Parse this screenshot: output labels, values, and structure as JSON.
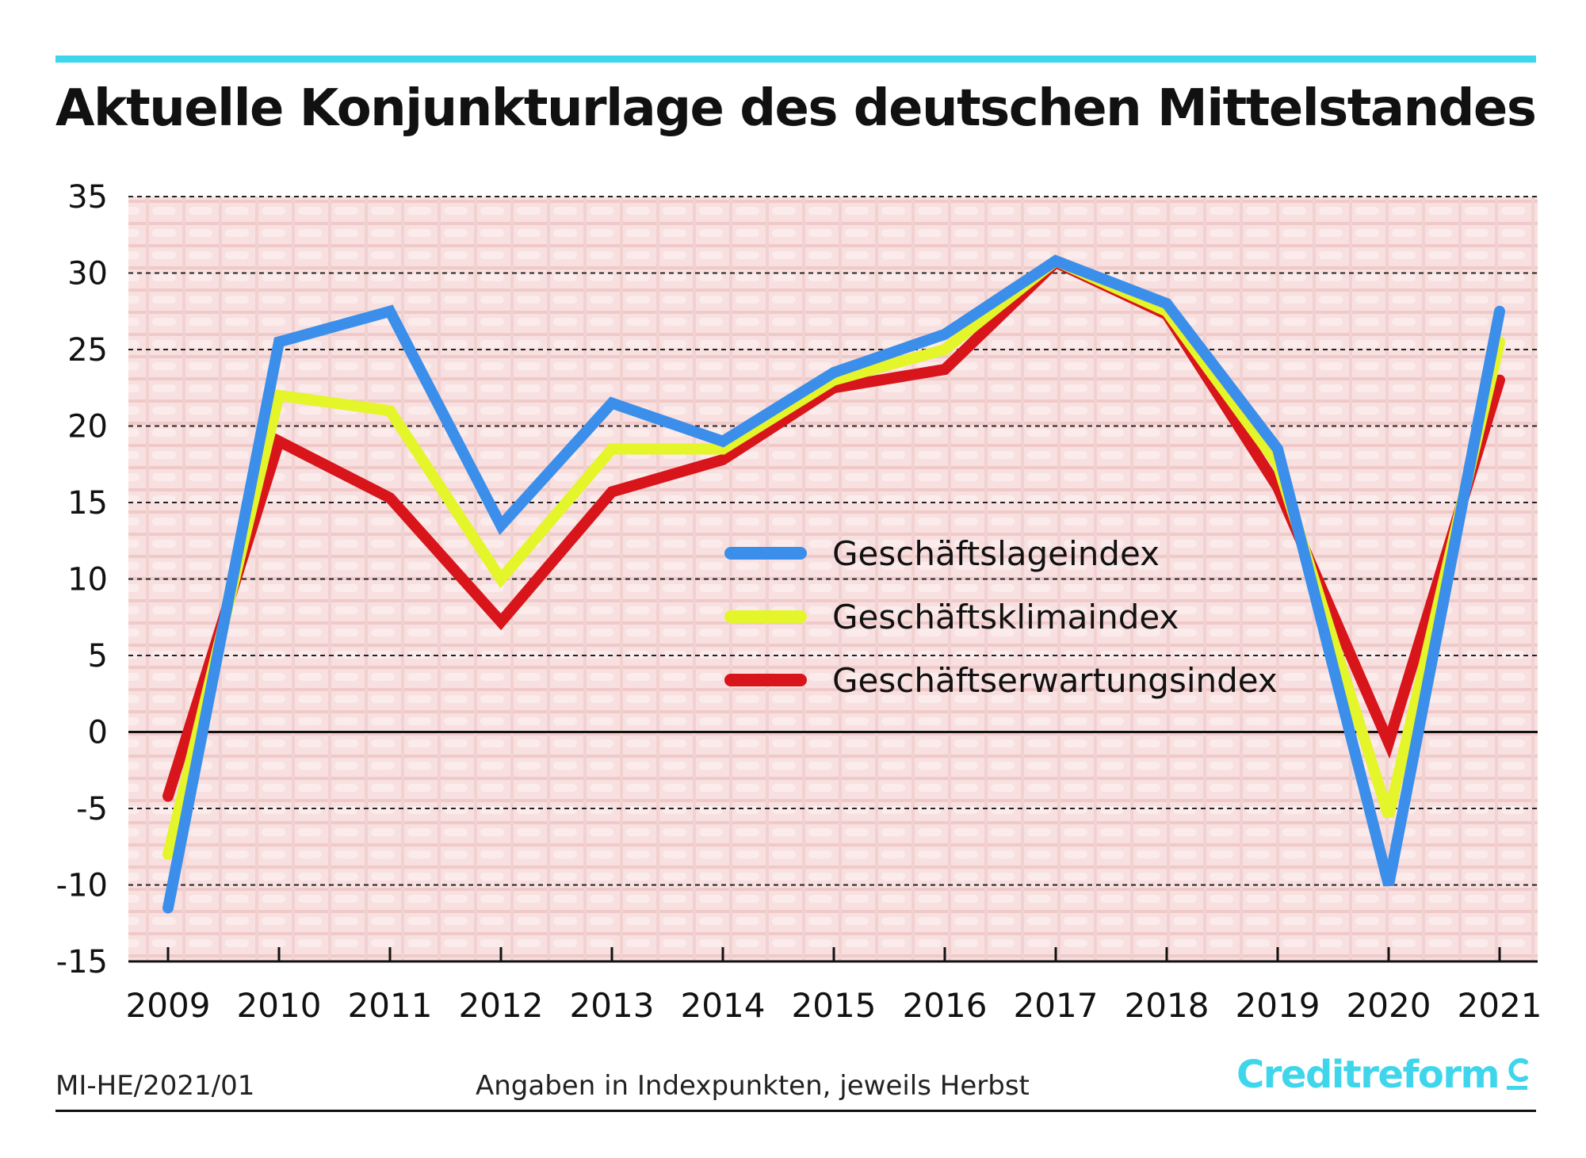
{
  "header": {
    "title": "Aktuelle Konjunkturlage des deutschen Mittelstandes"
  },
  "chart_data": {
    "type": "line",
    "title": "Aktuelle Konjunkturlage des deutschen Mittelstandes",
    "xlabel": "",
    "ylabel": "",
    "ylim": [
      -15,
      35
    ],
    "yticks": [
      "35",
      "30",
      "25",
      "20",
      "15",
      "10",
      "5",
      "0",
      "-5",
      "-10",
      "-15"
    ],
    "categories": [
      "2009",
      "2010",
      "2011",
      "2012",
      "2013",
      "2014",
      "2015",
      "2016",
      "2017",
      "2018",
      "2019",
      "2020",
      "2021"
    ],
    "grid": "horizontal dashed",
    "legend_position": "center-right",
    "series": [
      {
        "name": "Geschäftslageindex",
        "color": "#3b8fea",
        "values": [
          -11.5,
          25.5,
          27.5,
          13.5,
          21.5,
          19.0,
          23.5,
          26.0,
          30.8,
          28.0,
          18.5,
          -10.0,
          27.5
        ]
      },
      {
        "name": "Geschäftsklimaindex",
        "color": "#e4f52a",
        "values": [
          -8.0,
          22.0,
          21.0,
          10.0,
          18.5,
          18.5,
          23.0,
          25.0,
          30.8,
          27.5,
          17.5,
          -5.5,
          25.5
        ]
      },
      {
        "name": "Geschäftserwartungsindex",
        "color": "#d8151b",
        "values": [
          -4.2,
          19.0,
          15.3,
          7.2,
          15.7,
          17.8,
          22.5,
          23.7,
          30.7,
          27.3,
          16.0,
          -0.7,
          23.0
        ]
      }
    ]
  },
  "footer": {
    "code": "MI-HE/2021/01",
    "note": "Angaben in Indexpunkten, jeweils Herbst",
    "brand": "Creditreform",
    "brand_color": "#3fd6ec"
  }
}
